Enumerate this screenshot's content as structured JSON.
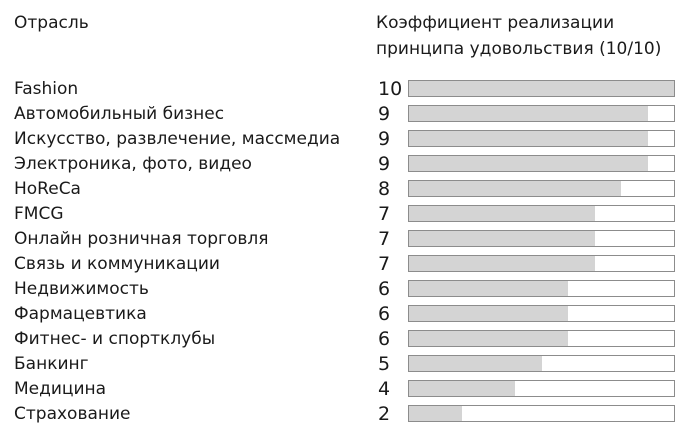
{
  "header": {
    "left_title": "Отрасль",
    "right_title_line1": "Коэффициент реализации",
    "right_title_line2": "принципа удовольствия (10/10)"
  },
  "colors": {
    "bar_fill": "#d4d4d4",
    "bar_border": "#8c8c8c",
    "text": "#1a1a1a"
  },
  "chart_data": {
    "type": "bar",
    "orientation": "horizontal",
    "title": "Коэффициент реализации принципа удовольствия (10/10)",
    "category_header": "Отрасль",
    "xlim": [
      0,
      10
    ],
    "categories": [
      "Fashion",
      "Автомобильный бизнес",
      "Искусство, развлечение, массмедиа",
      "Электроника, фото, видео",
      "HoReCa",
      "FMCG",
      "Онлайн розничная торговля",
      "Связь и коммуникации",
      "Недвижимость",
      "Фармацевтика",
      "Фитнес- и спортклубы",
      "Банкинг",
      "Медицина",
      "Страхование"
    ],
    "values": [
      10,
      9,
      9,
      9,
      8,
      7,
      7,
      7,
      6,
      6,
      6,
      5,
      4,
      2
    ],
    "value_labels": [
      "10",
      "9",
      "9",
      "9",
      "8",
      "7",
      "7",
      "7",
      "6",
      "6",
      "6",
      "5",
      "4",
      "2"
    ]
  }
}
